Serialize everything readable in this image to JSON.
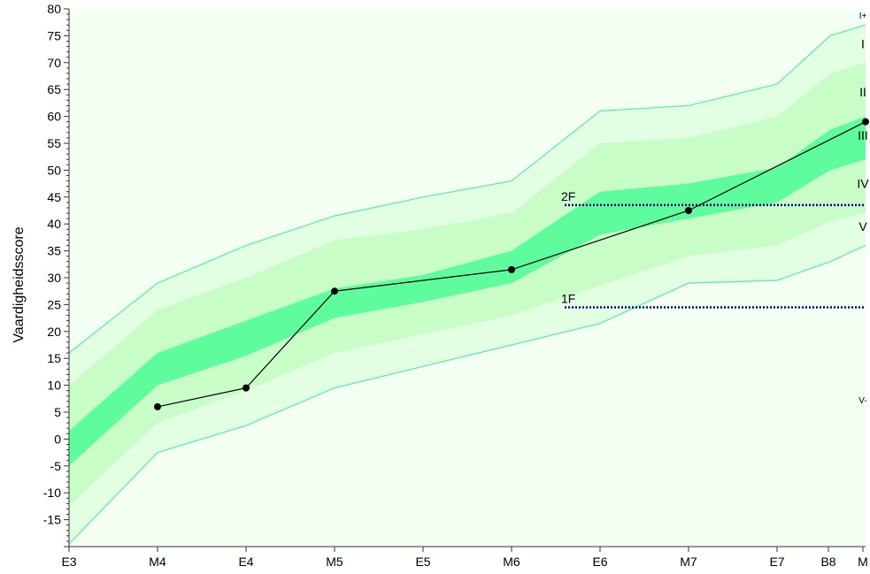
{
  "chart_data": {
    "type": "line",
    "ylabel": "Vaardigheidsscore",
    "xlabel": "",
    "ylim": [
      -20,
      80
    ],
    "yticks": [
      -15,
      -10,
      -5,
      0,
      5,
      10,
      15,
      20,
      25,
      30,
      35,
      40,
      45,
      50,
      55,
      60,
      65,
      70,
      75,
      80
    ],
    "x_ticks": [
      {
        "label": "E3",
        "pos": 0
      },
      {
        "label": "M4",
        "pos": 1
      },
      {
        "label": "E4",
        "pos": 2
      },
      {
        "label": "M5",
        "pos": 3
      },
      {
        "label": "E5",
        "pos": 4
      },
      {
        "label": "M6",
        "pos": 5
      },
      {
        "label": "E6",
        "pos": 6
      },
      {
        "label": "M7",
        "pos": 7
      },
      {
        "label": "E7",
        "pos": 8
      },
      {
        "label": "B8",
        "pos": 8.58
      },
      {
        "label": "M",
        "pos": 8.97
      }
    ],
    "band_x": [
      0,
      1,
      2,
      3,
      4,
      5,
      6,
      7,
      8,
      8.6,
      9
    ],
    "bands": {
      "upper_limit": [
        16,
        29,
        36,
        41.5,
        45,
        48,
        61,
        62,
        66,
        75,
        77
      ],
      "level_I_II": [
        10,
        24,
        30,
        37,
        39,
        42,
        55,
        56,
        60,
        68,
        70
      ],
      "level_II_III": [
        1.5,
        16,
        22,
        28,
        30.5,
        35,
        46,
        47.5,
        50.5,
        57.5,
        60
      ],
      "level_III_IV": [
        -5,
        10,
        15.5,
        22.5,
        25.5,
        29,
        38,
        41,
        44,
        50,
        52
      ],
      "level_IV_V": [
        -12.5,
        3,
        9,
        16,
        19.5,
        23,
        28.5,
        34,
        36,
        40.5,
        42
      ],
      "lower_limit": [
        -19.5,
        -2.5,
        2.5,
        9.5,
        13.5,
        17.5,
        21.5,
        29,
        29.5,
        33,
        36
      ]
    },
    "series": [
      {
        "x": [
          1,
          2,
          3,
          5,
          7,
          9
        ],
        "y": [
          6,
          9.5,
          27.5,
          31.5,
          42.5,
          59
        ]
      }
    ],
    "reference_lines": [
      {
        "label": "2F",
        "y": 43.5,
        "x_start": 5.6,
        "x_end": 9
      },
      {
        "label": "1F",
        "y": 24.5,
        "x_start": 5.6,
        "x_end": 9
      }
    ],
    "level_labels": [
      {
        "label": "I+",
        "y": 79
      },
      {
        "label": "I",
        "y": 73.5
      },
      {
        "label": "II",
        "y": 64.5
      },
      {
        "label": "III",
        "y": 56.5
      },
      {
        "label": "IV",
        "y": 47.5
      },
      {
        "label": "V",
        "y": 39.5
      },
      {
        "label": "V-",
        "y": 7.5
      }
    ],
    "colors": {
      "background": "#f2fff2",
      "outer_band": "#e3ffe3",
      "mid_band": "#c8fdc8",
      "inner_band": "#a0f8b0",
      "core_band": "#5efc9c",
      "limit_line": "#54eea0",
      "student_line": "#000000",
      "reference_line": "#000080"
    }
  }
}
